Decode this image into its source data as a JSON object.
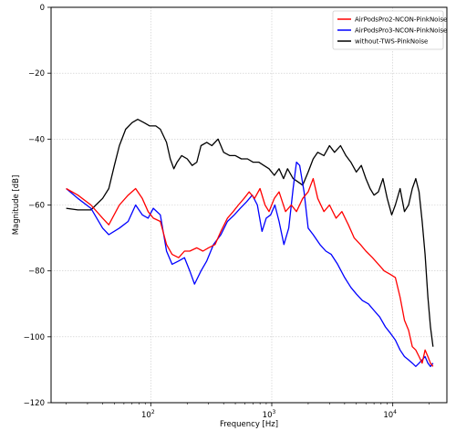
{
  "chart_data": {
    "type": "line",
    "title": "",
    "xlabel": "Frequency [Hz]",
    "ylabel": "Magnitude [dB]",
    "xscale": "log",
    "xlim": [
      15,
      28000
    ],
    "ylim": [
      -120,
      0
    ],
    "xticks": [
      100,
      1000,
      10000
    ],
    "xtick_labels": [
      {
        "base": "10",
        "exp": "2"
      },
      {
        "base": "10",
        "exp": "3"
      },
      {
        "base": "10",
        "exp": "4"
      }
    ],
    "yticks": [
      0,
      -20,
      -40,
      -60,
      -80,
      -100,
      -120
    ],
    "ytick_labels": [
      "0",
      "−20",
      "−40",
      "−60",
      "−80",
      "−100",
      "−120"
    ],
    "grid": true,
    "legend_position": "top-right",
    "series": [
      {
        "name": "AirPodsPro2-NCON-PinkNoise",
        "color": "#ff0000",
        "points": [
          [
            20,
            -55
          ],
          [
            25,
            -57
          ],
          [
            32,
            -60
          ],
          [
            40,
            -64
          ],
          [
            45,
            -66
          ],
          [
            55,
            -60
          ],
          [
            65,
            -57
          ],
          [
            75,
            -55
          ],
          [
            85,
            -58
          ],
          [
            95,
            -62
          ],
          [
            105,
            -64
          ],
          [
            120,
            -65
          ],
          [
            135,
            -72
          ],
          [
            150,
            -75
          ],
          [
            170,
            -76
          ],
          [
            190,
            -74
          ],
          [
            210,
            -74
          ],
          [
            240,
            -73
          ],
          [
            270,
            -74
          ],
          [
            300,
            -73
          ],
          [
            340,
            -72
          ],
          [
            380,
            -68
          ],
          [
            430,
            -64
          ],
          [
            480,
            -62
          ],
          [
            530,
            -60
          ],
          [
            590,
            -58
          ],
          [
            650,
            -56
          ],
          [
            720,
            -58
          ],
          [
            800,
            -55
          ],
          [
            880,
            -60
          ],
          [
            950,
            -62
          ],
          [
            1050,
            -58
          ],
          [
            1150,
            -56
          ],
          [
            1300,
            -62
          ],
          [
            1450,
            -60
          ],
          [
            1600,
            -62
          ],
          [
            1800,
            -58
          ],
          [
            2000,
            -56
          ],
          [
            2200,
            -52
          ],
          [
            2400,
            -58
          ],
          [
            2700,
            -62
          ],
          [
            3000,
            -60
          ],
          [
            3400,
            -64
          ],
          [
            3800,
            -62
          ],
          [
            4300,
            -66
          ],
          [
            4800,
            -70
          ],
          [
            5400,
            -72
          ],
          [
            6000,
            -74
          ],
          [
            6800,
            -76
          ],
          [
            7600,
            -78
          ],
          [
            8500,
            -80
          ],
          [
            9500,
            -81
          ],
          [
            10500,
            -82
          ],
          [
            11500,
            -88
          ],
          [
            12500,
            -95
          ],
          [
            13500,
            -98
          ],
          [
            14500,
            -103
          ],
          [
            15500,
            -104
          ],
          [
            16500,
            -106
          ],
          [
            17500,
            -108
          ],
          [
            18500,
            -104
          ],
          [
            19500,
            -106
          ],
          [
            20500,
            -108
          ],
          [
            21500,
            -109
          ]
        ]
      },
      {
        "name": "AirPodsPro3-NCON-PinkNoise",
        "color": "#0000ff",
        "points": [
          [
            20,
            -55
          ],
          [
            25,
            -58
          ],
          [
            32,
            -61
          ],
          [
            40,
            -67
          ],
          [
            45,
            -69
          ],
          [
            55,
            -67
          ],
          [
            65,
            -65
          ],
          [
            75,
            -60
          ],
          [
            85,
            -63
          ],
          [
            95,
            -64
          ],
          [
            105,
            -61
          ],
          [
            120,
            -63
          ],
          [
            135,
            -74
          ],
          [
            150,
            -78
          ],
          [
            170,
            -77
          ],
          [
            190,
            -76
          ],
          [
            210,
            -80
          ],
          [
            230,
            -84
          ],
          [
            260,
            -80
          ],
          [
            290,
            -77
          ],
          [
            330,
            -72
          ],
          [
            380,
            -69
          ],
          [
            430,
            -65
          ],
          [
            490,
            -63
          ],
          [
            550,
            -61
          ],
          [
            620,
            -59
          ],
          [
            690,
            -57
          ],
          [
            760,
            -60
          ],
          [
            830,
            -68
          ],
          [
            900,
            -64
          ],
          [
            980,
            -63
          ],
          [
            1060,
            -60
          ],
          [
            1150,
            -65
          ],
          [
            1260,
            -72
          ],
          [
            1380,
            -67
          ],
          [
            1500,
            -55
          ],
          [
            1600,
            -47
          ],
          [
            1700,
            -48
          ],
          [
            1850,
            -56
          ],
          [
            2000,
            -67
          ],
          [
            2200,
            -69
          ],
          [
            2500,
            -72
          ],
          [
            2800,
            -74
          ],
          [
            3100,
            -75
          ],
          [
            3500,
            -78
          ],
          [
            4000,
            -82
          ],
          [
            4500,
            -85
          ],
          [
            5000,
            -87
          ],
          [
            5600,
            -89
          ],
          [
            6300,
            -90
          ],
          [
            7000,
            -92
          ],
          [
            7800,
            -94
          ],
          [
            8700,
            -97
          ],
          [
            9600,
            -99
          ],
          [
            10500,
            -101
          ],
          [
            11500,
            -104
          ],
          [
            12500,
            -106
          ],
          [
            13500,
            -107
          ],
          [
            14500,
            -108
          ],
          [
            15500,
            -109
          ],
          [
            16500,
            -108
          ],
          [
            17500,
            -107
          ],
          [
            18500,
            -106
          ],
          [
            19500,
            -108
          ],
          [
            20500,
            -109
          ],
          [
            21500,
            -108
          ]
        ]
      },
      {
        "name": "without-TWS-PinkNoise",
        "color": "#000000",
        "points": [
          [
            20,
            -61
          ],
          [
            25,
            -61.5
          ],
          [
            32,
            -61.5
          ],
          [
            40,
            -58
          ],
          [
            45,
            -55
          ],
          [
            50,
            -48
          ],
          [
            55,
            -42
          ],
          [
            62,
            -37
          ],
          [
            70,
            -35
          ],
          [
            78,
            -34
          ],
          [
            88,
            -35
          ],
          [
            98,
            -36
          ],
          [
            110,
            -36
          ],
          [
            120,
            -37
          ],
          [
            135,
            -41
          ],
          [
            145,
            -46
          ],
          [
            155,
            -49
          ],
          [
            165,
            -47
          ],
          [
            180,
            -45
          ],
          [
            200,
            -46
          ],
          [
            220,
            -48
          ],
          [
            240,
            -47
          ],
          [
            260,
            -42
          ],
          [
            290,
            -41
          ],
          [
            320,
            -42
          ],
          [
            360,
            -40
          ],
          [
            400,
            -44
          ],
          [
            450,
            -45
          ],
          [
            500,
            -45
          ],
          [
            560,
            -46
          ],
          [
            630,
            -46
          ],
          [
            700,
            -47
          ],
          [
            780,
            -47
          ],
          [
            860,
            -48
          ],
          [
            950,
            -49
          ],
          [
            1050,
            -51
          ],
          [
            1150,
            -49
          ],
          [
            1250,
            -52
          ],
          [
            1350,
            -49
          ],
          [
            1500,
            -52
          ],
          [
            1650,
            -53
          ],
          [
            1800,
            -54
          ],
          [
            2000,
            -50
          ],
          [
            2200,
            -46
          ],
          [
            2400,
            -44
          ],
          [
            2700,
            -45
          ],
          [
            3000,
            -42
          ],
          [
            3300,
            -44
          ],
          [
            3700,
            -42
          ],
          [
            4100,
            -45
          ],
          [
            4500,
            -47
          ],
          [
            5000,
            -50
          ],
          [
            5500,
            -48
          ],
          [
            6000,
            -52
          ],
          [
            6500,
            -55
          ],
          [
            7000,
            -57
          ],
          [
            7600,
            -56
          ],
          [
            8300,
            -52
          ],
          [
            9000,
            -58
          ],
          [
            9800,
            -63
          ],
          [
            10500,
            -60
          ],
          [
            11500,
            -55
          ],
          [
            12500,
            -62
          ],
          [
            13500,
            -60
          ],
          [
            14500,
            -55
          ],
          [
            15500,
            -52
          ],
          [
            16500,
            -56
          ],
          [
            17500,
            -65
          ],
          [
            18500,
            -75
          ],
          [
            19500,
            -88
          ],
          [
            20500,
            -97
          ],
          [
            21500,
            -103
          ]
        ]
      }
    ]
  }
}
